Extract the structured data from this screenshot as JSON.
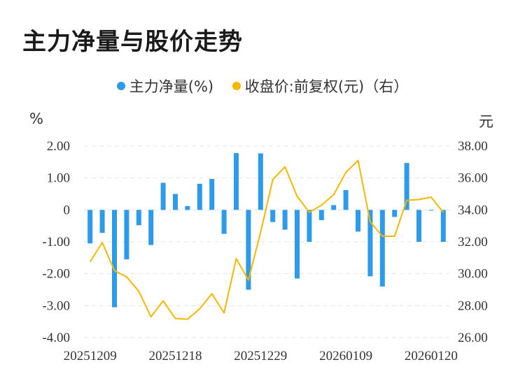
{
  "title": "主力净量与股价走势",
  "legend": {
    "series1": "主力净量(%)",
    "series2": "收盘价:前复权(元)（右）"
  },
  "units": {
    "left": "%",
    "right": "元"
  },
  "colors": {
    "bar": "#2e9bea",
    "line": "#f5b800",
    "grid": "#e3e3e3",
    "text": "#333333"
  },
  "chart_data": {
    "type": "bar+line",
    "x_tick_labels": [
      "20251209",
      "20251218",
      "20251229",
      "20260109",
      "20260120"
    ],
    "x_tick_indices": [
      0,
      7,
      14,
      21,
      28
    ],
    "left_axis": {
      "ylim": [
        -4,
        2
      ],
      "ticks": [
        "2.00",
        "1.00",
        "0",
        "-1.00",
        "-2.00",
        "-3.00",
        "-4.00"
      ],
      "values": [
        2,
        1,
        0,
        -1,
        -2,
        -3,
        -4
      ]
    },
    "right_axis": {
      "ylim": [
        26,
        38
      ],
      "ticks": [
        "38.00",
        "36.00",
        "34.00",
        "32.00",
        "30.00",
        "28.00",
        "26.00"
      ],
      "values": [
        38,
        36,
        34,
        32,
        30,
        28,
        26
      ]
    },
    "series": [
      {
        "name": "主力净量(%)",
        "type": "bar",
        "axis": "left",
        "values": [
          -1.05,
          -0.72,
          -3.05,
          -1.55,
          -0.48,
          -1.1,
          0.85,
          0.5,
          0.12,
          0.82,
          0.97,
          -0.75,
          1.78,
          -2.5,
          1.77,
          -0.38,
          -0.62,
          -2.15,
          -1.0,
          -0.32,
          0.15,
          0.62,
          -0.68,
          -2.08,
          -2.4,
          -0.22,
          1.47,
          -1.0,
          -0.02,
          -1.0
        ]
      },
      {
        "name": "收盘价:前复权(元)（右）",
        "type": "line",
        "axis": "right",
        "values": [
          30.75,
          31.95,
          30.2,
          29.8,
          28.9,
          27.3,
          28.3,
          27.2,
          27.15,
          27.8,
          28.75,
          27.55,
          30.95,
          29.6,
          32.6,
          35.9,
          36.7,
          34.85,
          33.85,
          34.3,
          34.95,
          36.35,
          37.1,
          33.25,
          32.35,
          32.35,
          34.6,
          34.65,
          34.8,
          33.85
        ]
      }
    ]
  }
}
